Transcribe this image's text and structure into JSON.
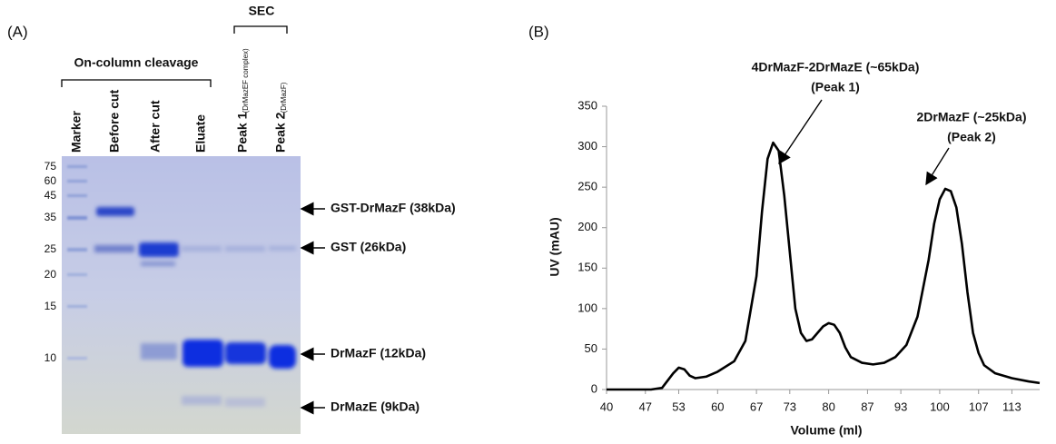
{
  "panel_a": {
    "label": "(A)",
    "groups": [
      {
        "label": "On-column cleavage"
      },
      {
        "label": "SEC"
      }
    ],
    "lanes": [
      {
        "label": "Marker"
      },
      {
        "label": "Before cut"
      },
      {
        "label": "After cut"
      },
      {
        "label": "Eluate"
      },
      {
        "label": "Peak 1",
        "note": "(DrMazEF complex)"
      },
      {
        "label": "Peak 2",
        "note": "(DrMazF)"
      }
    ],
    "marker_sizes": [
      75,
      60,
      45,
      35,
      25,
      20,
      15,
      10
    ],
    "bands": [
      "GST-DrMazF (38kDa)",
      "GST (26kDa)",
      "DrMazF (12kDa)",
      "DrMazE (9kDa)"
    ]
  },
  "chart_data": {
    "type": "line",
    "panel_label": "(B)",
    "annotations": [
      "4DrMazF-2DrMazE (~65kDa)",
      "(Peak 1)",
      "2DrMazF (~25kDa)",
      "(Peak 2)"
    ],
    "x_label": "Volume (ml)",
    "y_label": "UV (mAU)",
    "x": [
      40,
      48,
      50,
      52,
      53,
      54,
      55,
      56,
      58,
      60,
      63,
      65,
      67,
      68,
      69,
      70,
      71,
      72,
      73,
      74,
      75,
      76,
      77,
      78,
      79,
      80,
      81,
      82,
      83,
      84,
      86,
      88,
      90,
      92,
      94,
      96,
      98,
      99,
      100,
      101,
      102,
      103,
      104,
      105,
      106,
      107,
      108,
      110,
      113,
      116,
      118
    ],
    "series": [
      {
        "color": "#000000",
        "values": [
          0,
          0,
          2,
          20,
          27,
          25,
          17,
          14,
          16,
          22,
          35,
          60,
          140,
          220,
          285,
          305,
          295,
          240,
          170,
          100,
          70,
          60,
          62,
          70,
          78,
          82,
          80,
          70,
          52,
          40,
          33,
          31,
          33,
          40,
          55,
          90,
          160,
          205,
          235,
          248,
          245,
          225,
          180,
          120,
          70,
          45,
          30,
          20,
          14,
          10,
          8
        ]
      }
    ],
    "xlim": [
      40,
      118
    ],
    "xticks": [
      40,
      47,
      53,
      60,
      67,
      73,
      80,
      87,
      93,
      100,
      107,
      113
    ],
    "ylim": [
      0,
      350
    ],
    "yticks": [
      0,
      50,
      100,
      150,
      200,
      250,
      300,
      350
    ]
  }
}
